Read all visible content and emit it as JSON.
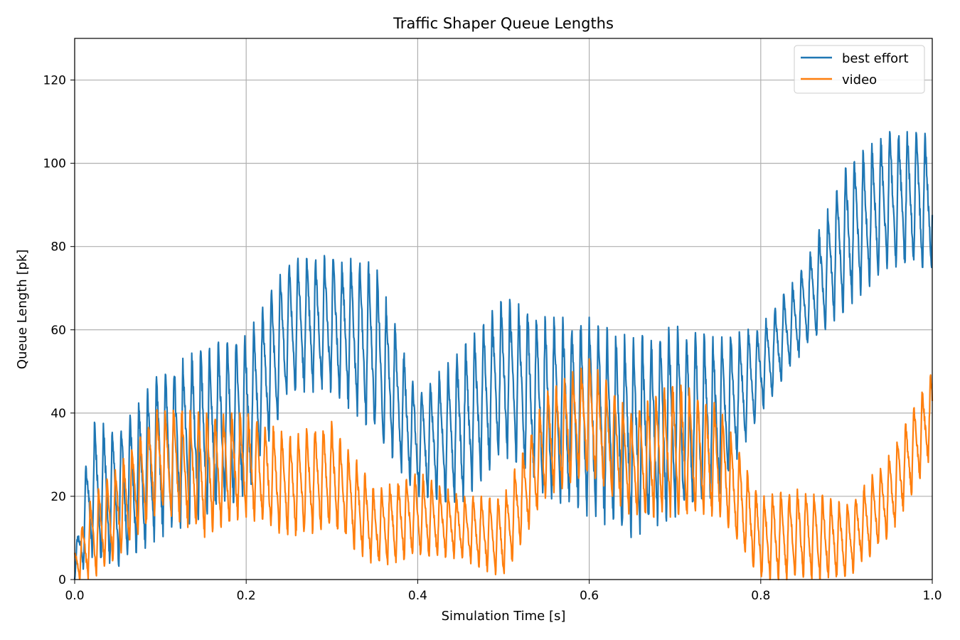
{
  "chart_data": {
    "type": "line",
    "title": "Traffic Shaper Queue Lengths",
    "xlabel": "Simulation Time [s]",
    "ylabel": "Queue Length [pk]",
    "xlim": [
      0.0,
      1.0
    ],
    "ylim": [
      0,
      130
    ],
    "xticks": [
      "0.0",
      "0.2",
      "0.4",
      "0.6",
      "0.8",
      "1.0"
    ],
    "yticks": [
      "0",
      "20",
      "40",
      "60",
      "80",
      "100",
      "120"
    ],
    "grid": true,
    "legend_position": "top-right",
    "series": [
      {
        "name": "best effort",
        "color": "#1f77b4",
        "description": "oscillating sawtooth, ~100 cycles",
        "x": [
          0.0,
          0.02,
          0.05,
          0.1,
          0.15,
          0.2,
          0.25,
          0.3,
          0.35,
          0.4,
          0.45,
          0.5,
          0.55,
          0.6,
          0.65,
          0.7,
          0.75,
          0.8,
          0.85,
          0.9,
          0.95,
          1.0
        ],
        "low": [
          0,
          5,
          3,
          10,
          15,
          20,
          45,
          45,
          35,
          20,
          18,
          30,
          20,
          15,
          10,
          15,
          20,
          40,
          55,
          65,
          75,
          75
        ],
        "high": [
          5,
          39,
          36,
          50,
          56,
          59,
          77,
          78,
          76,
          45,
          55,
          68,
          63,
          63,
          58,
          61,
          58,
          61,
          75,
          100,
          108,
          107
        ]
      },
      {
        "name": "video",
        "color": "#ff7f0e",
        "description": "oscillating sawtooth, ~100 cycles",
        "x": [
          0.0,
          0.02,
          0.05,
          0.1,
          0.15,
          0.2,
          0.25,
          0.3,
          0.35,
          0.4,
          0.45,
          0.5,
          0.55,
          0.6,
          0.65,
          0.7,
          0.75,
          0.8,
          0.85,
          0.9,
          0.95,
          1.0
        ],
        "low": [
          0,
          0,
          5,
          17,
          10,
          15,
          10,
          12,
          3,
          5,
          5,
          0,
          20,
          25,
          15,
          15,
          15,
          0,
          0,
          0,
          10,
          30
        ],
        "high": [
          8,
          20,
          27,
          42,
          40,
          40,
          35,
          38,
          22,
          26,
          20,
          20,
          45,
          53,
          40,
          48,
          42,
          20,
          22,
          18,
          30,
          50
        ]
      }
    ]
  }
}
